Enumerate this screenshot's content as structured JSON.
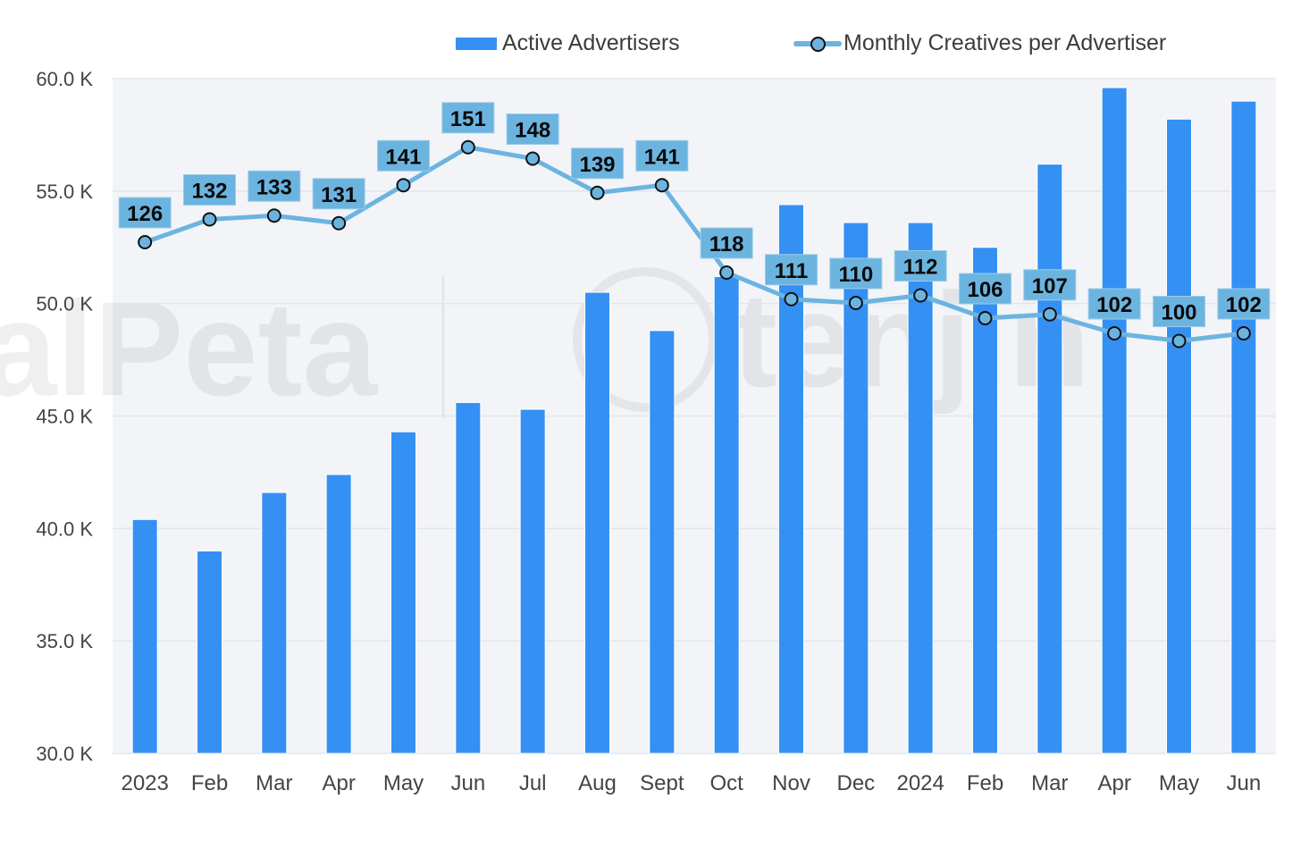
{
  "chart_data": {
    "type": "bar+line",
    "title": "",
    "xlabel": "",
    "ylabel": "",
    "categories": [
      "2023",
      "Feb",
      "Mar",
      "Apr",
      "May",
      "Jun",
      "Jul",
      "Aug",
      "Sept",
      "Oct",
      "Nov",
      "Dec",
      "2024",
      "Feb",
      "Mar",
      "Apr",
      "May",
      "Jun"
    ],
    "y_axis": {
      "ylim": [
        30000,
        60000
      ],
      "ticks": [
        30000,
        35000,
        40000,
        45000,
        50000,
        55000,
        60000
      ],
      "tick_labels": [
        "30.0 K",
        "35.0 K",
        "40.0 K",
        "45.0 K",
        "50.0 K",
        "55.0 K",
        "60.0 K"
      ],
      "grid": true
    },
    "series": [
      {
        "name": "Active Advertisers",
        "type": "bar",
        "color": "#3590f3",
        "axis": "primary",
        "values": [
          40400,
          39000,
          41600,
          42400,
          44300,
          45600,
          45300,
          50500,
          48800,
          51200,
          54400,
          53600,
          53600,
          52500,
          56200,
          59600,
          58200,
          59000
        ]
      },
      {
        "name": "Monthly Creatives per Advertiser",
        "type": "line",
        "color": "#6cb4e0",
        "marker_edge": "#111111",
        "axis": "secondary-hidden",
        "data_labels": true,
        "values": [
          126,
          132,
          133,
          131,
          141,
          151,
          148,
          139,
          141,
          118,
          111,
          110,
          112,
          106,
          107,
          102,
          100,
          102
        ]
      }
    ],
    "legend": {
      "position": "top-right",
      "entries": [
        "Active Advertisers",
        "Monthly Creatives per Advertiser"
      ]
    },
    "background_color": "#f2f4f8",
    "watermarks": [
      "alPeta",
      "tenjin"
    ]
  }
}
